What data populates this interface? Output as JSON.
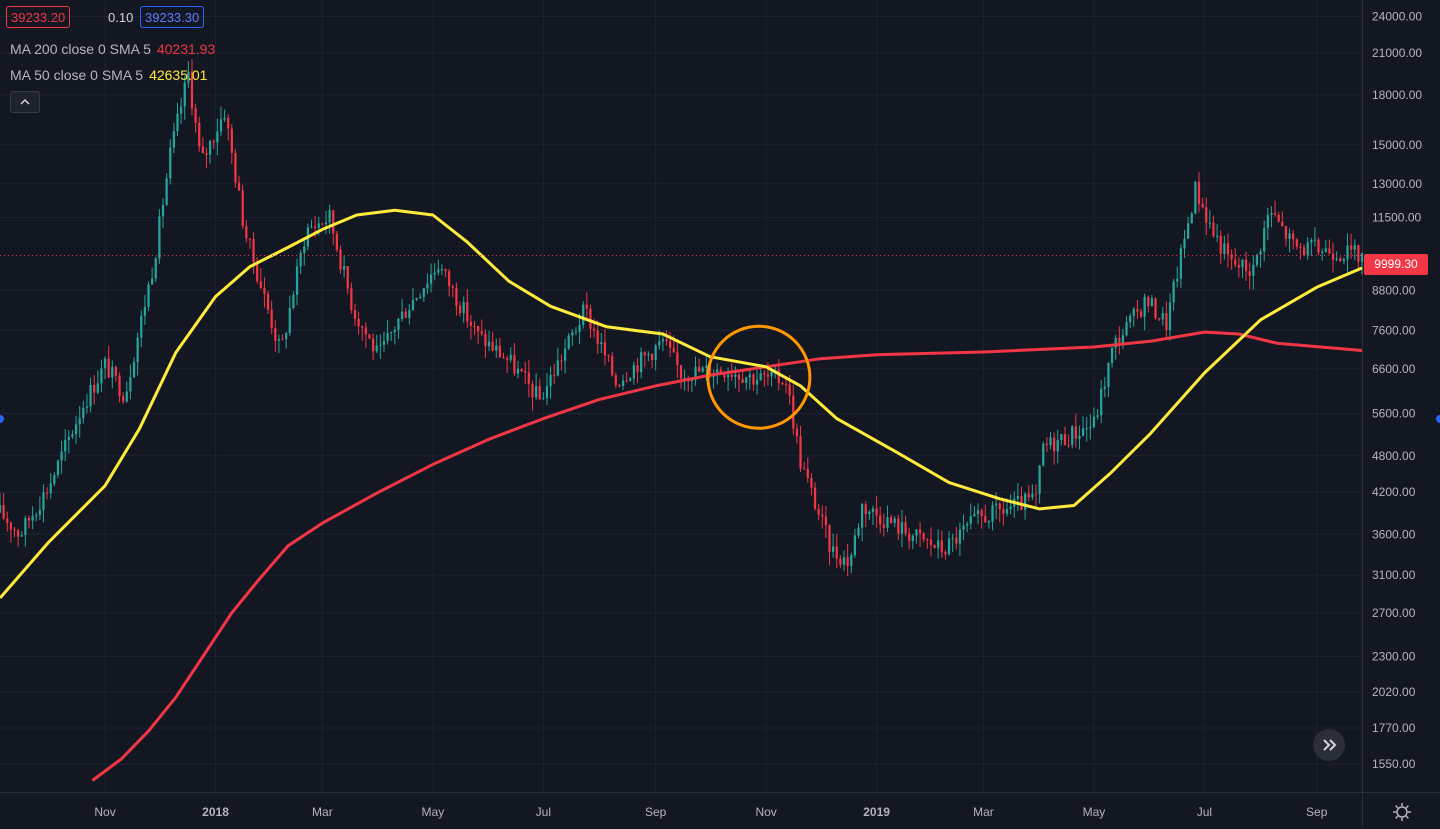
{
  "header": {
    "bid": "39233.20",
    "spread": "0.10",
    "ask": "39233.30"
  },
  "indicators": {
    "ma200": {
      "label": "MA 200 close 0 SMA 5",
      "value": "40231.93",
      "color": "#f23645"
    },
    "ma50": {
      "label": "MA 50 close 0 SMA 5",
      "value": "42635.01",
      "color": "#ffeb3b"
    }
  },
  "last_price_label": "9999.30",
  "icons": {
    "collapse": "chevron-up-icon",
    "scroll": "double-chevron-right-icon",
    "settings": "gear-icon"
  },
  "colors": {
    "background": "#131722",
    "grid": "#1e2230",
    "up": "#26a69a",
    "down": "#f23645",
    "ma200": "#f23645",
    "ma50": "#ffeb3b",
    "highlight_circle": "#ff9800"
  },
  "chart_data": {
    "type": "candlestick",
    "scale": "log",
    "ylim": [
      1400,
      25500
    ],
    "xlim": [
      "2017-09-04",
      "2019-09-26"
    ],
    "x_ticks": [
      {
        "label": "Nov",
        "date": "2017-11-01",
        "bold": false
      },
      {
        "label": "2018",
        "date": "2018-01-01",
        "bold": true
      },
      {
        "label": "Mar",
        "date": "2018-03-01",
        "bold": false
      },
      {
        "label": "May",
        "date": "2018-05-01",
        "bold": false
      },
      {
        "label": "Jul",
        "date": "2018-07-01",
        "bold": false
      },
      {
        "label": "Sep",
        "date": "2018-09-01",
        "bold": false
      },
      {
        "label": "Nov",
        "date": "2018-11-01",
        "bold": false
      },
      {
        "label": "2019",
        "date": "2019-01-01",
        "bold": true
      },
      {
        "label": "Mar",
        "date": "2019-03-01",
        "bold": false
      },
      {
        "label": "May",
        "date": "2019-05-01",
        "bold": false
      },
      {
        "label": "Jul",
        "date": "2019-07-01",
        "bold": false
      },
      {
        "label": "Sep",
        "date": "2019-09-01",
        "bold": false
      }
    ],
    "y_ticks": [
      {
        "label": "24000.00",
        "value": 24000
      },
      {
        "label": "21000.00",
        "value": 21000
      },
      {
        "label": "18000.00",
        "value": 18000
      },
      {
        "label": "15000.00",
        "value": 15000
      },
      {
        "label": "13000.00",
        "value": 13000
      },
      {
        "label": "11500.00",
        "value": 11500
      },
      {
        "label": "8800.00",
        "value": 8800
      },
      {
        "label": "7600.00",
        "value": 7600
      },
      {
        "label": "6600.00",
        "value": 6600
      },
      {
        "label": "5600.00",
        "value": 5600
      },
      {
        "label": "4800.00",
        "value": 4800
      },
      {
        "label": "4200.00",
        "value": 4200
      },
      {
        "label": "3600.00",
        "value": 3600
      },
      {
        "label": "3100.00",
        "value": 3100
      },
      {
        "label": "2700.00",
        "value": 2700
      },
      {
        "label": "2300.00",
        "value": 2300
      },
      {
        "label": "2020.00",
        "value": 2020
      },
      {
        "label": "1770.00",
        "value": 1770
      },
      {
        "label": "1550.00",
        "value": 1550
      }
    ],
    "price_anchors": [
      [
        "2017-09-04",
        3900
      ],
      [
        "2017-09-15",
        3600
      ],
      [
        "2017-10-01",
        4300
      ],
      [
        "2017-10-20",
        5800
      ],
      [
        "2017-11-01",
        6700
      ],
      [
        "2017-11-12",
        6000
      ],
      [
        "2017-11-28",
        9800
      ],
      [
        "2017-12-07",
        14500
      ],
      [
        "2017-12-17",
        19500
      ],
      [
        "2017-12-24",
        14000
      ],
      [
        "2018-01-06",
        17000
      ],
      [
        "2018-01-17",
        11000
      ],
      [
        "2018-02-06",
        7000
      ],
      [
        "2018-02-20",
        11000
      ],
      [
        "2018-03-05",
        11500
      ],
      [
        "2018-03-18",
        8200
      ],
      [
        "2018-04-01",
        6900
      ],
      [
        "2018-04-12",
        7900
      ],
      [
        "2018-05-04",
        9700
      ],
      [
        "2018-05-25",
        7500
      ],
      [
        "2018-06-12",
        6800
      ],
      [
        "2018-06-29",
        5900
      ],
      [
        "2018-07-24",
        8200
      ],
      [
        "2018-08-10",
        6300
      ],
      [
        "2018-09-05",
        7300
      ],
      [
        "2018-09-15",
        6500
      ],
      [
        "2018-10-10",
        6600
      ],
      [
        "2018-10-25",
        6400
      ],
      [
        "2018-11-12",
        6350
      ],
      [
        "2018-11-20",
        4700
      ],
      [
        "2018-12-07",
        3400
      ],
      [
        "2018-12-17",
        3250
      ],
      [
        "2018-12-24",
        4000
      ],
      [
        "2019-01-20",
        3600
      ],
      [
        "2019-02-07",
        3400
      ],
      [
        "2019-02-25",
        3800
      ],
      [
        "2019-03-30",
        4100
      ],
      [
        "2019-04-03",
        4950
      ],
      [
        "2019-05-01",
        5400
      ],
      [
        "2019-05-12",
        7200
      ],
      [
        "2019-05-30",
        8500
      ],
      [
        "2019-06-10",
        7800
      ],
      [
        "2019-06-26",
        12800
      ],
      [
        "2019-07-05",
        11000
      ],
      [
        "2019-07-16",
        9700
      ],
      [
        "2019-07-28",
        9500
      ],
      [
        "2019-08-06",
        11800
      ],
      [
        "2019-08-20",
        10300
      ],
      [
        "2019-09-10",
        10200
      ],
      [
        "2019-09-26",
        9999.3
      ]
    ],
    "series": [
      {
        "name": "MA 200 close 0 SMA 5",
        "color": "#f23645",
        "points": [
          [
            "2017-10-25",
            1460
          ],
          [
            "2017-11-10",
            1580
          ],
          [
            "2017-11-25",
            1750
          ],
          [
            "2017-12-10",
            1980
          ],
          [
            "2017-12-25",
            2300
          ],
          [
            "2018-01-10",
            2700
          ],
          [
            "2018-01-25",
            3050
          ],
          [
            "2018-02-10",
            3450
          ],
          [
            "2018-03-01",
            3750
          ],
          [
            "2018-04-01",
            4200
          ],
          [
            "2018-05-01",
            4650
          ],
          [
            "2018-06-01",
            5100
          ],
          [
            "2018-07-01",
            5500
          ],
          [
            "2018-08-01",
            5900
          ],
          [
            "2018-09-01",
            6200
          ],
          [
            "2018-10-01",
            6450
          ],
          [
            "2018-11-01",
            6650
          ],
          [
            "2018-12-01",
            6850
          ],
          [
            "2019-01-01",
            6950
          ],
          [
            "2019-03-01",
            7020
          ],
          [
            "2019-05-01",
            7150
          ],
          [
            "2019-06-01",
            7300
          ],
          [
            "2019-07-01",
            7550
          ],
          [
            "2019-07-20",
            7500
          ],
          [
            "2019-08-10",
            7250
          ],
          [
            "2019-09-26",
            7060
          ]
        ]
      },
      {
        "name": "MA 50 close 0 SMA 5",
        "color": "#ffeb3b",
        "points": [
          [
            "2017-09-04",
            2850
          ],
          [
            "2017-10-01",
            3500
          ],
          [
            "2017-11-01",
            4300
          ],
          [
            "2017-11-20",
            5300
          ],
          [
            "2017-12-10",
            7000
          ],
          [
            "2018-01-01",
            8600
          ],
          [
            "2018-01-20",
            9600
          ],
          [
            "2018-02-10",
            10300
          ],
          [
            "2018-03-01",
            11000
          ],
          [
            "2018-03-20",
            11600
          ],
          [
            "2018-04-10",
            11800
          ],
          [
            "2018-05-01",
            11600
          ],
          [
            "2018-05-20",
            10500
          ],
          [
            "2018-06-12",
            9100
          ],
          [
            "2018-07-05",
            8300
          ],
          [
            "2018-08-05",
            7700
          ],
          [
            "2018-09-05",
            7500
          ],
          [
            "2018-10-01",
            6900
          ],
          [
            "2018-11-01",
            6650
          ],
          [
            "2018-11-20",
            6200
          ],
          [
            "2018-12-10",
            5500
          ],
          [
            "2019-01-10",
            4900
          ],
          [
            "2019-02-10",
            4350
          ],
          [
            "2019-03-10",
            4100
          ],
          [
            "2019-04-01",
            3950
          ],
          [
            "2019-04-20",
            4000
          ],
          [
            "2019-05-10",
            4500
          ],
          [
            "2019-06-01",
            5200
          ],
          [
            "2019-07-01",
            6500
          ],
          [
            "2019-08-01",
            7900
          ],
          [
            "2019-09-01",
            8900
          ],
          [
            "2019-09-26",
            9550
          ]
        ]
      }
    ],
    "annotations": [
      {
        "type": "circle",
        "date": "2018-10-28",
        "value": 6400,
        "color": "#ff9800"
      }
    ]
  }
}
